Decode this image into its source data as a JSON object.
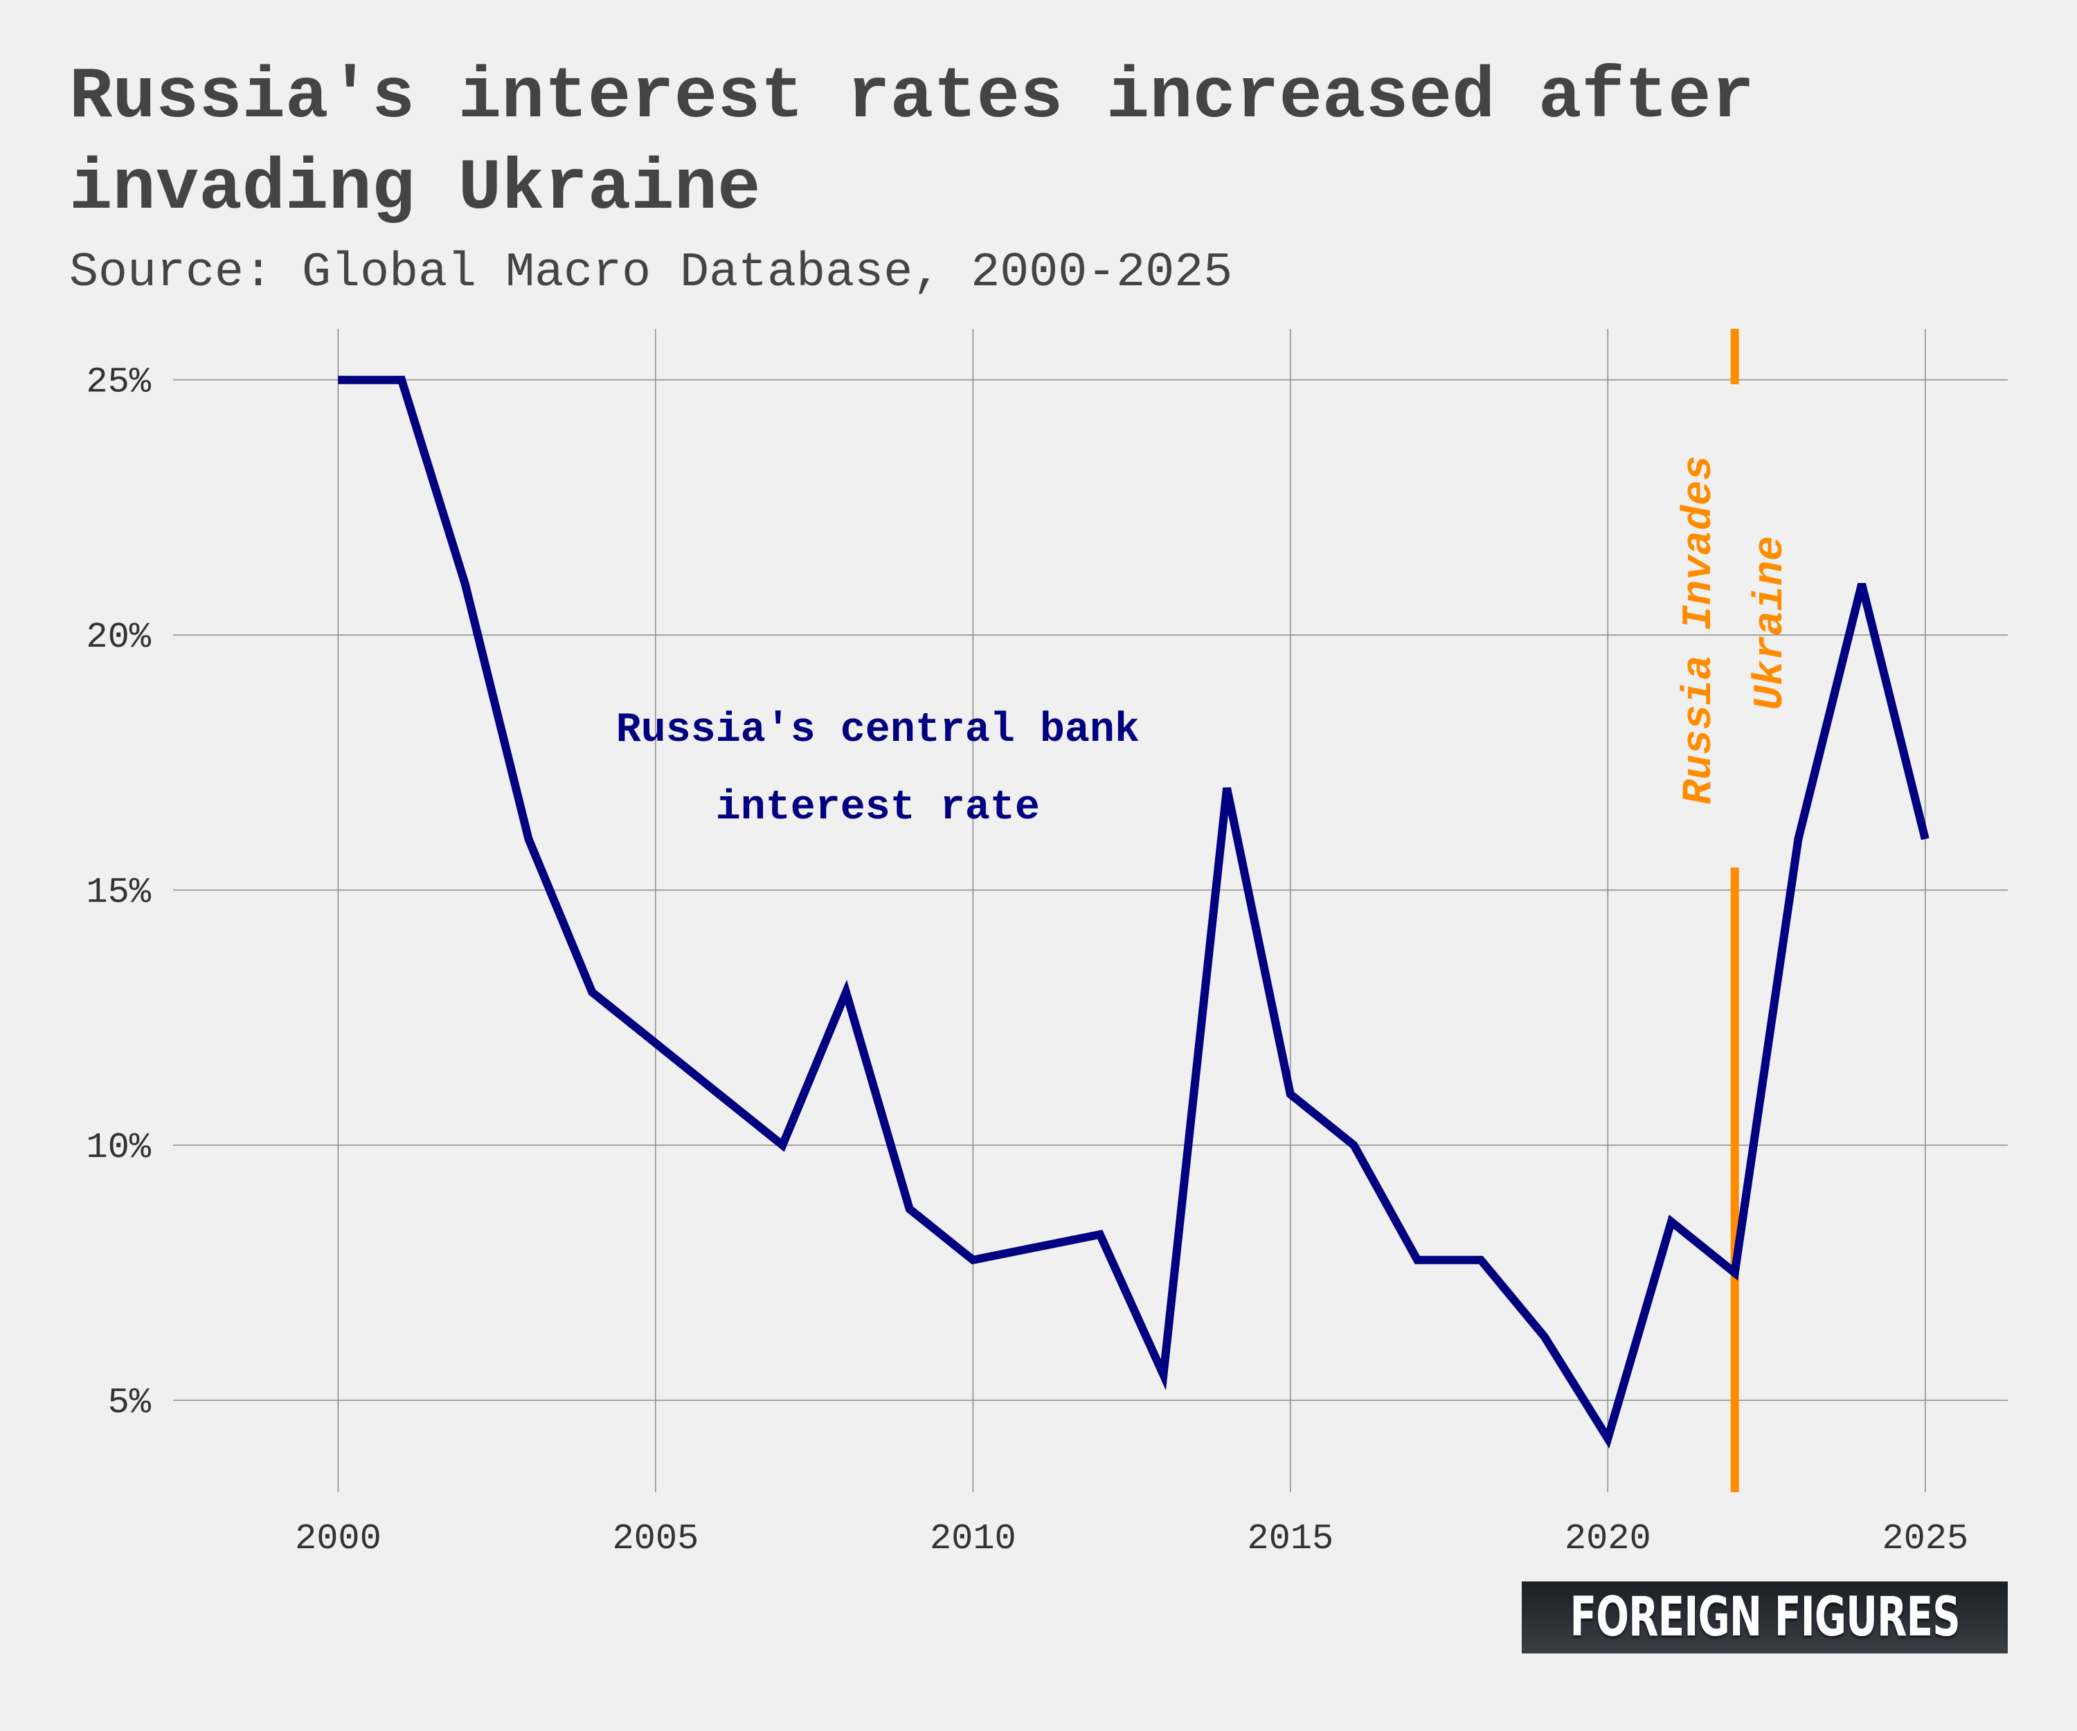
{
  "header": {
    "title": "Russia's interest rates increased after invading Ukraine",
    "subtitle": "Source: Global Macro Database, 2000-2025"
  },
  "logo": {
    "text": "FOREIGN FIGURES"
  },
  "chart_data": {
    "type": "line",
    "title": "Russia's interest rates increased after invading Ukraine",
    "subtitle": "Source: Global Macro Database, 2000-2025",
    "xlabel": "",
    "ylabel": "",
    "x": [
      2000,
      2001,
      2002,
      2003,
      2004,
      2005,
      2006,
      2007,
      2008,
      2009,
      2010,
      2011,
      2012,
      2013,
      2014,
      2015,
      2016,
      2017,
      2018,
      2019,
      2020,
      2021,
      2022,
      2023,
      2024,
      2025
    ],
    "series": [
      {
        "name": "Russia's central bank interest rate",
        "color": "#000080",
        "values": [
          25,
          25,
          21,
          16,
          13,
          12,
          11,
          10,
          13,
          8.75,
          7.75,
          8,
          8.25,
          5.5,
          17,
          11,
          10,
          7.75,
          7.75,
          6.25,
          4.25,
          8.5,
          7.5,
          16,
          21,
          16
        ]
      }
    ],
    "xlim": [
      1997.4,
      2026.3
    ],
    "ylim": [
      3.2,
      26.0
    ],
    "x_ticks": [
      2000,
      2005,
      2010,
      2015,
      2020,
      2025
    ],
    "x_tick_labels": [
      "2000",
      "2005",
      "2010",
      "2015",
      "2020",
      "2025"
    ],
    "y_ticks": [
      5,
      10,
      15,
      20,
      25
    ],
    "y_tick_labels": [
      "5%",
      "10%",
      "15%",
      "20%",
      "25%"
    ],
    "grid": true,
    "legend": "none",
    "annotations": [
      {
        "type": "series-label",
        "lines": [
          "Russia's central bank",
          "interest rate"
        ],
        "x": 2008.5,
        "y": 18.5,
        "color": "#000080"
      },
      {
        "type": "vertical-line",
        "x": 2022,
        "lines": [
          "Russia Invades",
          "Ukraine"
        ],
        "color": "#ff8c00"
      }
    ]
  }
}
